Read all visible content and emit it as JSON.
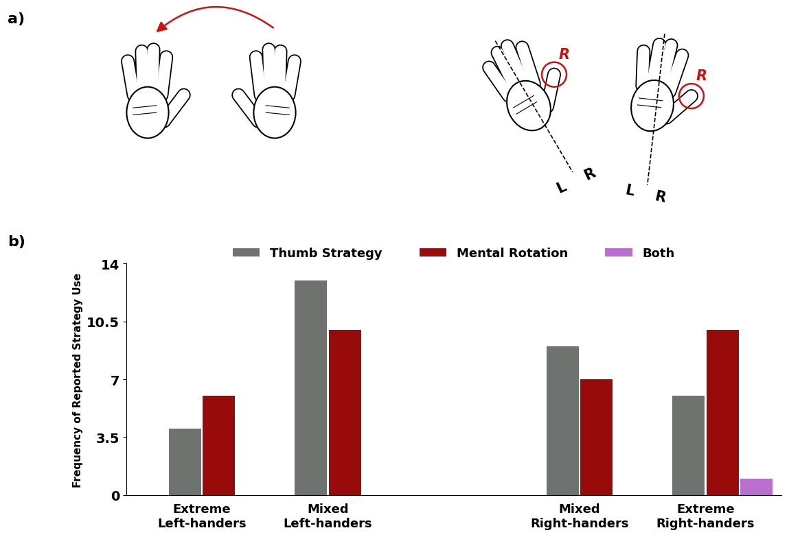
{
  "panel_labels": [
    "a)",
    "b)"
  ],
  "diagram": {
    "marker_label": "R",
    "side_labels": [
      "L",
      "R"
    ]
  },
  "chart_data": {
    "type": "bar",
    "y_label": "Frequency of Reported Strategy Use",
    "categories": [
      "Extreme\nLeft-handers",
      "Mixed\nLeft-handers",
      null,
      "Mixed\nRight-handers",
      "Extreme\nRight-handers"
    ],
    "series": [
      {
        "name": "Thumb Strategy",
        "color": "#6e7370",
        "values": [
          4,
          13,
          null,
          9,
          6
        ]
      },
      {
        "name": "Mental Rotation",
        "color": "#990a0a",
        "values": [
          6,
          10,
          null,
          7,
          10
        ]
      },
      {
        "name": "Both",
        "color": "#b86fd0",
        "values": [
          null,
          null,
          null,
          null,
          1
        ]
      }
    ],
    "ylim": [
      0,
      14
    ],
    "yticks": [
      0,
      3.5,
      7,
      10.5,
      14
    ],
    "legend": "upper center",
    "grid": false
  }
}
